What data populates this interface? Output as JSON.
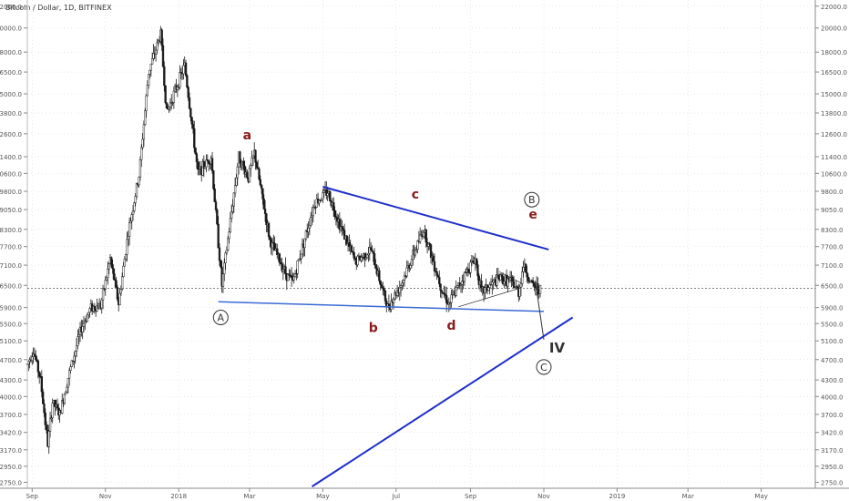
{
  "header": {
    "symbol_title": "Bitcoin / Dollar, 1D, BITFINEX"
  },
  "colors": {
    "candle": "#1a1a1a",
    "trendline": "#1f2ecc",
    "support": "#3a6ad6",
    "label_red": "#8b1a1a",
    "grid": "#d0d0d0",
    "axis_text": "#555555",
    "last_price_line": "#555555"
  },
  "chart_data": {
    "type": "candlestick",
    "title": "Bitcoin / Dollar, 1D, BITFINEX",
    "y_axis": {
      "position": "both",
      "scale": "log",
      "ticks": [
        "22000.0",
        "20000.0",
        "18000.0",
        "16500.0",
        "15000.0",
        "13800.0",
        "12600.0",
        "11400.0",
        "10600.0",
        "9800.0",
        "9050.0",
        "8300.0",
        "7700.0",
        "7100.0",
        "6500.0",
        "5900.0",
        "5500.0",
        "5100.0",
        "4700.0",
        "4300.0",
        "4000.0",
        "3700.0",
        "3420.0",
        "3170.0",
        "2950.0",
        "2750.0"
      ]
    },
    "x_axis": {
      "ticks": [
        "Sep",
        "Nov",
        "2018",
        "Mar",
        "May",
        "Jul",
        "Sep",
        "Nov",
        "2019",
        "Mar",
        "May"
      ],
      "tick_dates": [
        "2017-09-01",
        "2017-11-01",
        "2018-01-01",
        "2018-03-01",
        "2018-05-01",
        "2018-07-01",
        "2018-09-01",
        "2018-11-01",
        "2019-01-01",
        "2019-03-01",
        "2019-05-01"
      ],
      "range": [
        "2017-08-28",
        "2019-06-15"
      ]
    },
    "series_path": [
      [
        "2017-08-28",
        4600
      ],
      [
        "2017-09-02",
        4900
      ],
      [
        "2017-09-08",
        4300
      ],
      [
        "2017-09-14",
        3250
      ],
      [
        "2017-09-18",
        3900
      ],
      [
        "2017-09-24",
        3700
      ],
      [
        "2017-10-01",
        4350
      ],
      [
        "2017-10-12",
        5400
      ],
      [
        "2017-10-20",
        5900
      ],
      [
        "2017-10-28",
        5950
      ],
      [
        "2017-11-05",
        7300
      ],
      [
        "2017-11-12",
        6000
      ],
      [
        "2017-11-20",
        8200
      ],
      [
        "2017-11-29",
        10500
      ],
      [
        "2017-12-07",
        16500
      ],
      [
        "2017-12-17",
        19500
      ],
      [
        "2017-12-22",
        13800
      ],
      [
        "2017-12-28",
        15000
      ],
      [
        "2018-01-06",
        17000
      ],
      [
        "2018-01-17",
        10600
      ],
      [
        "2018-01-28",
        11400
      ],
      [
        "2018-02-06",
        6500
      ],
      [
        "2018-02-20",
        11400
      ],
      [
        "2018-02-28",
        10400
      ],
      [
        "2018-03-05",
        11600
      ],
      [
        "2018-03-18",
        7900
      ],
      [
        "2018-04-01",
        6800
      ],
      [
        "2018-04-06",
        6600
      ],
      [
        "2018-04-24",
        9300
      ],
      [
        "2018-05-05",
        9800
      ],
      [
        "2018-05-15",
        8500
      ],
      [
        "2018-05-28",
        7200
      ],
      [
        "2018-06-10",
        7600
      ],
      [
        "2018-06-24",
        5900
      ],
      [
        "2018-07-06",
        6600
      ],
      [
        "2018-07-24",
        8300
      ],
      [
        "2018-08-08",
        6400
      ],
      [
        "2018-08-14",
        6000
      ],
      [
        "2018-08-30",
        7000
      ],
      [
        "2018-09-05",
        7300
      ],
      [
        "2018-09-10",
        6300
      ],
      [
        "2018-09-25",
        6700
      ],
      [
        "2018-10-05",
        6600
      ],
      [
        "2018-10-11",
        6300
      ],
      [
        "2018-10-15",
        7100
      ],
      [
        "2018-10-22",
        6500
      ],
      [
        "2018-10-29",
        6400
      ]
    ],
    "last_price": 6420,
    "annotations": [
      {
        "text": "a",
        "color": "red"
      },
      {
        "text": "b",
        "color": "red"
      },
      {
        "text": "c",
        "color": "red"
      },
      {
        "text": "d",
        "color": "red"
      },
      {
        "text": "e",
        "color": "red"
      },
      {
        "text": "A",
        "style": "circled"
      },
      {
        "text": "B",
        "style": "circled"
      },
      {
        "text": "C",
        "style": "circled"
      },
      {
        "text": "IV",
        "style": "bold"
      }
    ],
    "trendlines": [
      {
        "name": "upper",
        "from": [
          "2018-05-01",
          10000
        ],
        "to": [
          "2018-11-05",
          7600
        ]
      },
      {
        "name": "lower",
        "from": [
          "2018-02-03",
          6050
        ],
        "to": [
          "2018-11-01",
          5800
        ]
      },
      {
        "name": "ascending",
        "from": [
          "2018-04-22",
          2700
        ],
        "to": [
          "2018-11-25",
          5650
        ]
      },
      {
        "name": "projection",
        "from": [
          "2018-10-25",
          6600
        ],
        "to": [
          "2018-11-01",
          5130
        ]
      }
    ],
    "grid": true
  }
}
